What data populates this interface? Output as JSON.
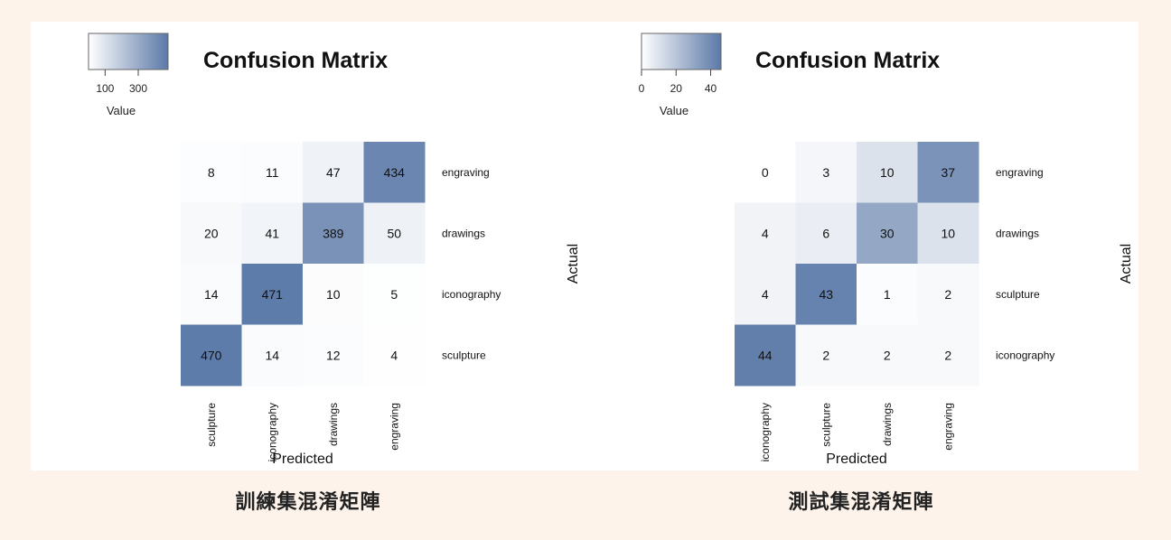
{
  "chart_data": [
    {
      "type": "heatmap",
      "title": "Confusion Matrix",
      "xlabel": "Predicted",
      "ylabel": "Actual",
      "x_categories": [
        "sculpture",
        "iconography",
        "drawings",
        "engraving"
      ],
      "y_categories": [
        "engraving",
        "drawings",
        "iconography",
        "sculpture"
      ],
      "values": [
        [
          8,
          11,
          47,
          434
        ],
        [
          20,
          41,
          389,
          50
        ],
        [
          14,
          471,
          10,
          5
        ],
        [
          470,
          14,
          12,
          4
        ]
      ],
      "legend": {
        "title": "Value",
        "ticks": [
          "100",
          "300"
        ],
        "range": [
          0,
          480
        ],
        "position": "top-left"
      },
      "color_low": "#ffffff",
      "color_high": "#5b79a8",
      "caption": "訓練集混淆矩陣"
    },
    {
      "type": "heatmap",
      "title": "Confusion Matrix",
      "xlabel": "Predicted",
      "ylabel": "Actual",
      "x_categories": [
        "iconography",
        "sculpture",
        "drawings",
        "engraving"
      ],
      "y_categories": [
        "engraving",
        "drawings",
        "sculpture",
        "iconography"
      ],
      "values": [
        [
          0,
          3,
          10,
          37
        ],
        [
          4,
          6,
          30,
          10
        ],
        [
          4,
          43,
          1,
          2
        ],
        [
          44,
          2,
          2,
          2
        ]
      ],
      "legend": {
        "title": "Value",
        "ticks": [
          "0",
          "20",
          "40"
        ],
        "range": [
          0,
          46
        ],
        "position": "top-left"
      },
      "color_low": "#ffffff",
      "color_high": "#5b79a8",
      "caption": "測試集混淆矩陣"
    }
  ]
}
